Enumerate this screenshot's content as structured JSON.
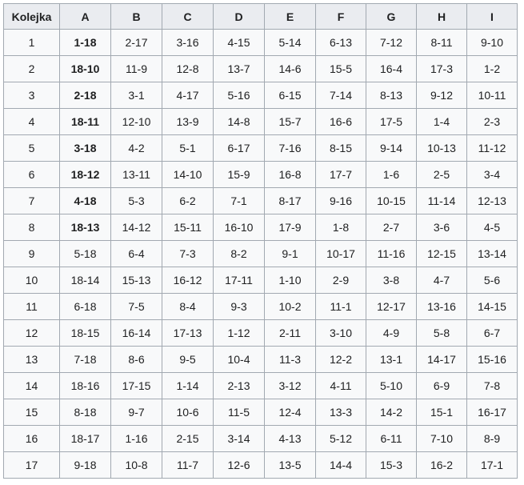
{
  "table": {
    "headers": [
      "Kolejka",
      "A",
      "B",
      "C",
      "D",
      "E",
      "F",
      "G",
      "H",
      "I"
    ],
    "rows": [
      [
        "1",
        "1-18",
        "2-17",
        "3-16",
        "4-15",
        "5-14",
        "6-13",
        "7-12",
        "8-11",
        "9-10"
      ],
      [
        "2",
        "18-10",
        "11-9",
        "12-8",
        "13-7",
        "14-6",
        "15-5",
        "16-4",
        "17-3",
        "1-2"
      ],
      [
        "3",
        "2-18",
        "3-1",
        "4-17",
        "5-16",
        "6-15",
        "7-14",
        "8-13",
        "9-12",
        "10-11"
      ],
      [
        "4",
        "18-11",
        "12-10",
        "13-9",
        "14-8",
        "15-7",
        "16-6",
        "17-5",
        "1-4",
        "2-3"
      ],
      [
        "5",
        "3-18",
        "4-2",
        "5-1",
        "6-17",
        "7-16",
        "8-15",
        "9-14",
        "10-13",
        "11-12"
      ],
      [
        "6",
        "18-12",
        "13-11",
        "14-10",
        "15-9",
        "16-8",
        "17-7",
        "1-6",
        "2-5",
        "3-4"
      ],
      [
        "7",
        "4-18",
        "5-3",
        "6-2",
        "7-1",
        "8-17",
        "9-16",
        "10-15",
        "11-14",
        "12-13"
      ],
      [
        "8",
        "18-13",
        "14-12",
        "15-11",
        "16-10",
        "17-9",
        "1-8",
        "2-7",
        "3-6",
        "4-5"
      ],
      [
        "9",
        "5-18",
        "6-4",
        "7-3",
        "8-2",
        "9-1",
        "10-17",
        "11-16",
        "12-15",
        "13-14"
      ],
      [
        "10",
        "18-14",
        "15-13",
        "16-12",
        "17-11",
        "1-10",
        "2-9",
        "3-8",
        "4-7",
        "5-6"
      ],
      [
        "11",
        "6-18",
        "7-5",
        "8-4",
        "9-3",
        "10-2",
        "11-1",
        "12-17",
        "13-16",
        "14-15"
      ],
      [
        "12",
        "18-15",
        "16-14",
        "17-13",
        "1-12",
        "2-11",
        "3-10",
        "4-9",
        "5-8",
        "6-7"
      ],
      [
        "13",
        "7-18",
        "8-6",
        "9-5",
        "10-4",
        "11-3",
        "12-2",
        "13-1",
        "14-17",
        "15-16"
      ],
      [
        "14",
        "18-16",
        "17-15",
        "1-14",
        "2-13",
        "3-12",
        "4-11",
        "5-10",
        "6-9",
        "7-8"
      ],
      [
        "15",
        "8-18",
        "9-7",
        "10-6",
        "11-5",
        "12-4",
        "13-3",
        "14-2",
        "15-1",
        "16-17"
      ],
      [
        "16",
        "18-17",
        "1-16",
        "2-15",
        "3-14",
        "4-13",
        "5-12",
        "6-11",
        "7-10",
        "8-9"
      ],
      [
        "17",
        "9-18",
        "10-8",
        "11-7",
        "12-6",
        "13-5",
        "14-4",
        "15-3",
        "16-2",
        "17-1"
      ]
    ],
    "bold_rows_in_column_A": [
      1,
      2,
      3,
      4,
      5,
      6,
      7,
      8
    ]
  }
}
